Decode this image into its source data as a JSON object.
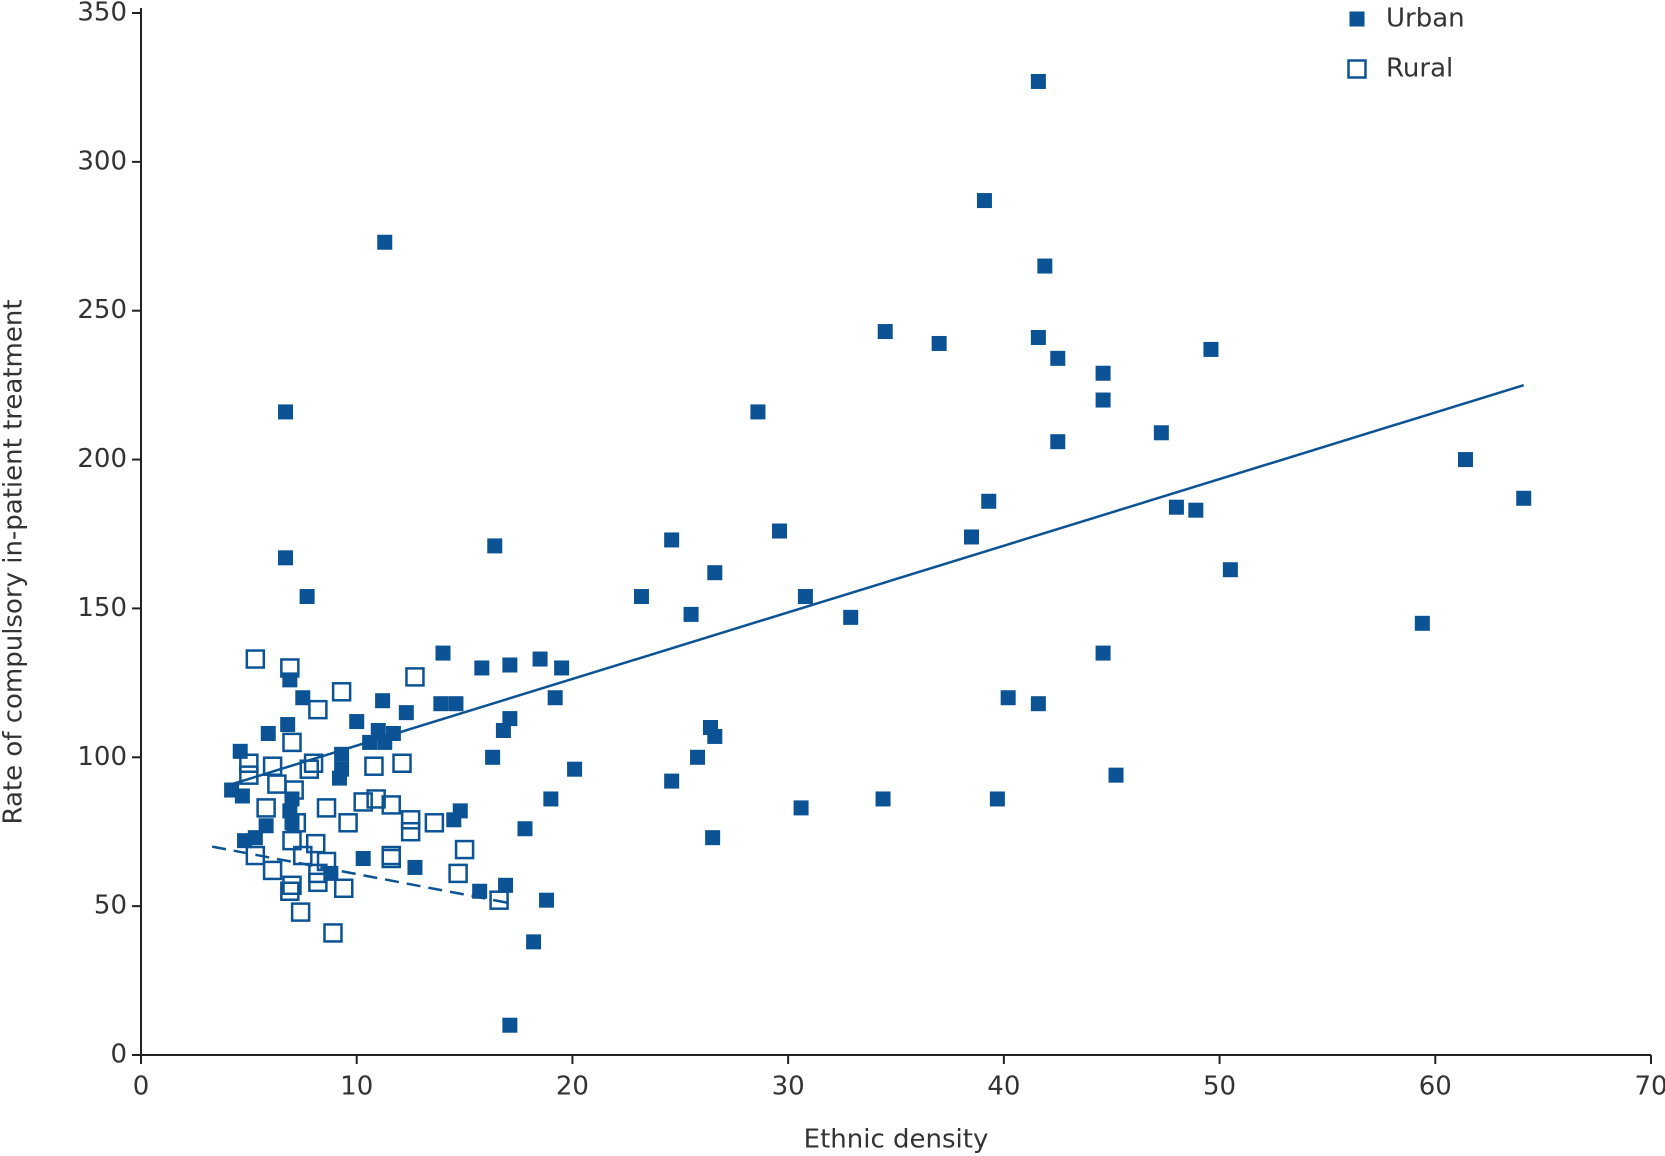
{
  "chart_data": {
    "type": "scatter",
    "xlabel": "Ethnic density",
    "ylabel": "Rate of compulsory in-patient treatment",
    "xlim": [
      0,
      70
    ],
    "xticks": [
      0,
      10,
      20,
      30,
      40,
      50,
      60,
      70
    ],
    "ylim": [
      0,
      350
    ],
    "yticks": [
      0,
      50,
      100,
      150,
      200,
      250,
      300,
      350
    ],
    "grid": false,
    "legend": "upper right",
    "series": [
      {
        "name": "Urban",
        "color": "#0b5394",
        "marker": "filled",
        "x": [
          41.6,
          39.1,
          11.3,
          41.9,
          34.5,
          37.0,
          41.6,
          42.5,
          49.6,
          44.6,
          44.6,
          6.7,
          28.6,
          42.5,
          47.3,
          61.4,
          64.1,
          39.3,
          48.0,
          48.9,
          29.6,
          38.5,
          16.4,
          24.6,
          6.7,
          26.6,
          50.5,
          7.7,
          23.2,
          30.8,
          25.5,
          32.9,
          59.4,
          14.0,
          44.6,
          15.8,
          17.1,
          18.5,
          19.5,
          6.9,
          7.5,
          11.2,
          13.9,
          14.6,
          19.2,
          40.2,
          41.6,
          12.3,
          6.8,
          10.0,
          17.1,
          16.8,
          26.4,
          26.6,
          5.9,
          11.0,
          11.7,
          10.6,
          11.3,
          4.6,
          9.3,
          16.3,
          25.8,
          20.1,
          4.2,
          4.7,
          9.3,
          9.2,
          24.6,
          45.2,
          19.0,
          34.4,
          39.7,
          7.0,
          6.9,
          30.6,
          14.8,
          14.5,
          7.0,
          5.8,
          17.8,
          5.3,
          4.8,
          26.5,
          12.7,
          10.3,
          8.8,
          15.7,
          16.9,
          18.8,
          18.2,
          17.1
        ],
        "values": [
          327,
          287,
          273,
          265,
          243,
          239,
          241,
          234,
          237,
          229,
          220,
          216,
          216,
          206,
          209,
          200,
          187,
          186,
          184,
          183,
          176,
          174,
          171,
          173,
          167,
          162,
          163,
          154,
          154,
          154,
          148,
          147,
          145,
          135,
          135,
          130,
          131,
          133,
          130,
          126,
          120,
          119,
          118,
          118,
          120,
          120,
          118,
          115,
          111,
          112,
          113,
          109,
          110,
          107,
          108,
          109,
          108,
          105,
          105,
          102,
          101,
          100,
          100,
          96,
          89,
          87,
          96,
          93,
          92,
          94,
          86,
          86,
          86,
          86,
          82,
          83,
          82,
          79,
          78,
          77,
          76,
          73,
          72,
          73,
          63,
          66,
          61,
          55,
          57,
          52,
          38,
          10
        ],
        "trend": {
          "x": [
            4.0,
            64.1
          ],
          "y": [
            90.5,
            225
          ]
        }
      },
      {
        "name": "Rural",
        "color": "#0b5394",
        "marker": "open",
        "x": [
          5.3,
          6.9,
          12.7,
          9.3,
          8.2,
          7.0,
          5.0,
          6.1,
          8.0,
          10.8,
          12.1,
          7.8,
          6.3,
          7.1,
          5.0,
          8.6,
          10.3,
          10.9,
          11.6,
          5.8,
          9.6,
          12.5,
          12.5,
          13.6,
          7.2,
          7.0,
          8.1,
          15.0,
          5.3,
          7.5,
          11.6,
          11.6,
          8.6,
          6.1,
          8.2,
          14.7,
          8.2,
          7.0,
          6.9,
          9.4,
          16.6,
          7.4,
          8.9
        ],
        "values": [
          133,
          130,
          127,
          122,
          116,
          105,
          98,
          97,
          98,
          97,
          98,
          96,
          91,
          89,
          94,
          83,
          85,
          86,
          84,
          83,
          78,
          79,
          75,
          78,
          78,
          72,
          71,
          69,
          67,
          67,
          67,
          66,
          65,
          62,
          61,
          61,
          58,
          57,
          55,
          56,
          52,
          48,
          41
        ],
        "trend": {
          "x": [
            3.3,
            17.1
          ],
          "y": [
            70,
            51
          ]
        }
      }
    ]
  }
}
